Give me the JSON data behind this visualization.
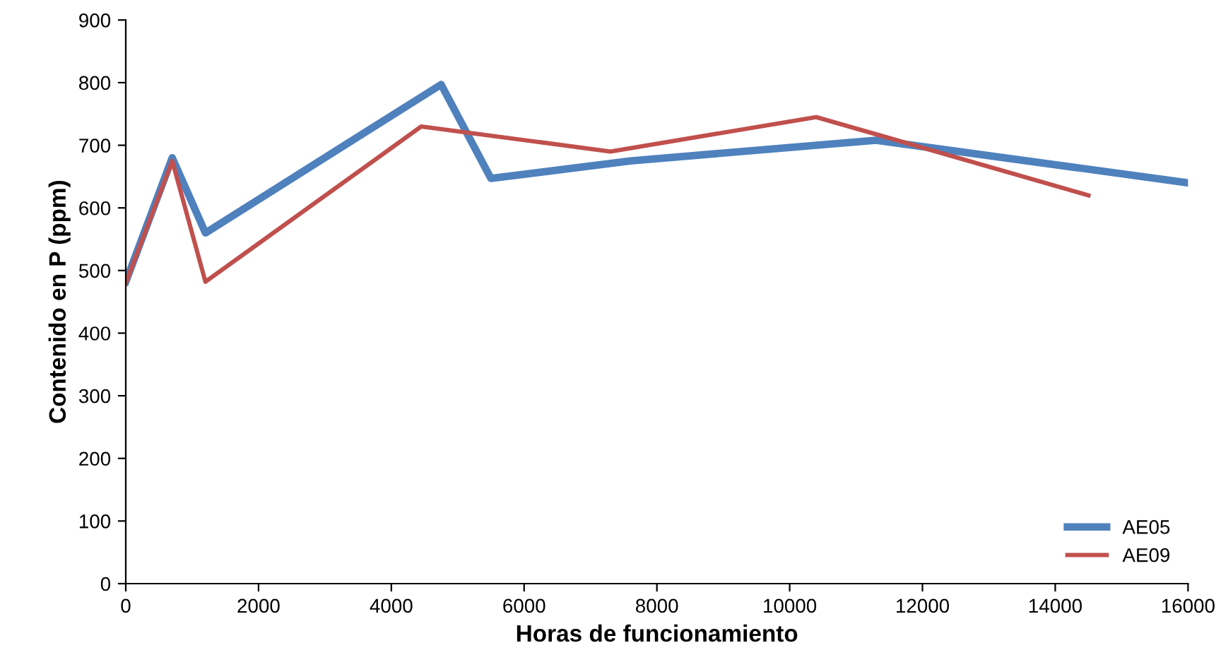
{
  "chart_data": {
    "type": "line",
    "xlabel": "Horas de funcionamiento",
    "ylabel": "Contenido en P (ppm)",
    "xlim": [
      0,
      16000
    ],
    "xticks": [
      0,
      2000,
      4000,
      6000,
      8000,
      10000,
      12000,
      14000,
      16000
    ],
    "ylim": [
      0,
      900
    ],
    "yticks": [
      0,
      100,
      200,
      300,
      400,
      500,
      600,
      700,
      800,
      900
    ],
    "grid": false,
    "legend": "bottom right",
    "marker": "none",
    "line_style": "solid",
    "series": [
      {
        "name": "AE05",
        "color": "#4f81bd",
        "x": [
          0,
          700,
          1200,
          4750,
          5500,
          7600,
          11300,
          16000
        ],
        "values": [
          482,
          680,
          560,
          797,
          647,
          675,
          708,
          640
        ]
      },
      {
        "name": "AE09",
        "color": "#c0504d",
        "x": [
          0,
          700,
          1200,
          4450,
          7300,
          10400,
          14500
        ],
        "values": [
          480,
          675,
          482,
          730,
          690,
          745,
          620
        ]
      }
    ]
  }
}
